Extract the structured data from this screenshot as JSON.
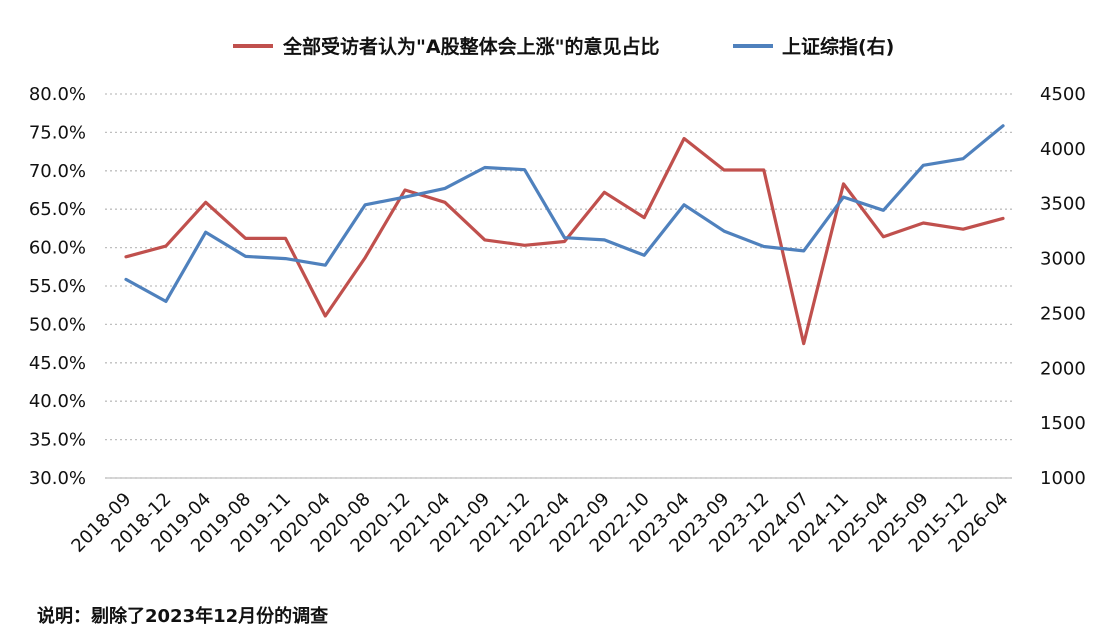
{
  "chart_data": {
    "type": "line",
    "categories": [
      "2018-09",
      "2018-12",
      "2019-04",
      "2019-08",
      "2019-11",
      "2020-04",
      "2020-08",
      "2020-12",
      "2021-04",
      "2021-09",
      "2021-12",
      "2022-04",
      "2022-09",
      "2022-10",
      "2023-04",
      "2023-09",
      "2023-12",
      "2024-07",
      "2024-11",
      "2025-04",
      "2025-09",
      "2015-12",
      "2026-04"
    ],
    "series": [
      {
        "name": "全部受访者认为\"A股整体会上涨\"的意见占比",
        "axis": "left",
        "color": "#C0504D",
        "values": [
          58.8,
          60.2,
          65.9,
          61.2,
          61.2,
          51.1,
          58.7,
          67.5,
          65.9,
          61.0,
          60.3,
          60.8,
          67.2,
          63.9,
          74.2,
          70.1,
          70.1,
          47.5,
          68.3,
          61.4,
          63.2,
          62.4,
          63.8
        ]
      },
      {
        "name": "上证综指(右)",
        "axis": "right",
        "color": "#4F81BD",
        "values": [
          2810,
          2610,
          3240,
          3020,
          3000,
          2940,
          3490,
          3560,
          3640,
          3830,
          3810,
          3190,
          3170,
          3030,
          3490,
          3250,
          3110,
          3070,
          3560,
          3440,
          3850,
          3910,
          4210
        ]
      }
    ],
    "y_left": {
      "lim": [
        30,
        80
      ],
      "ticks": [
        "30.0%",
        "35.0%",
        "40.0%",
        "45.0%",
        "50.0%",
        "55.0%",
        "60.0%",
        "65.0%",
        "70.0%",
        "75.0%",
        "80.0%"
      ]
    },
    "y_right": {
      "lim": [
        1000,
        4500
      ],
      "ticks": [
        "1000",
        "1500",
        "2000",
        "2500",
        "3000",
        "3500",
        "4000",
        "4500"
      ]
    },
    "grid": true,
    "legend_position": "top-center",
    "note": "说明：剔除了2023年12月份的调查"
  }
}
